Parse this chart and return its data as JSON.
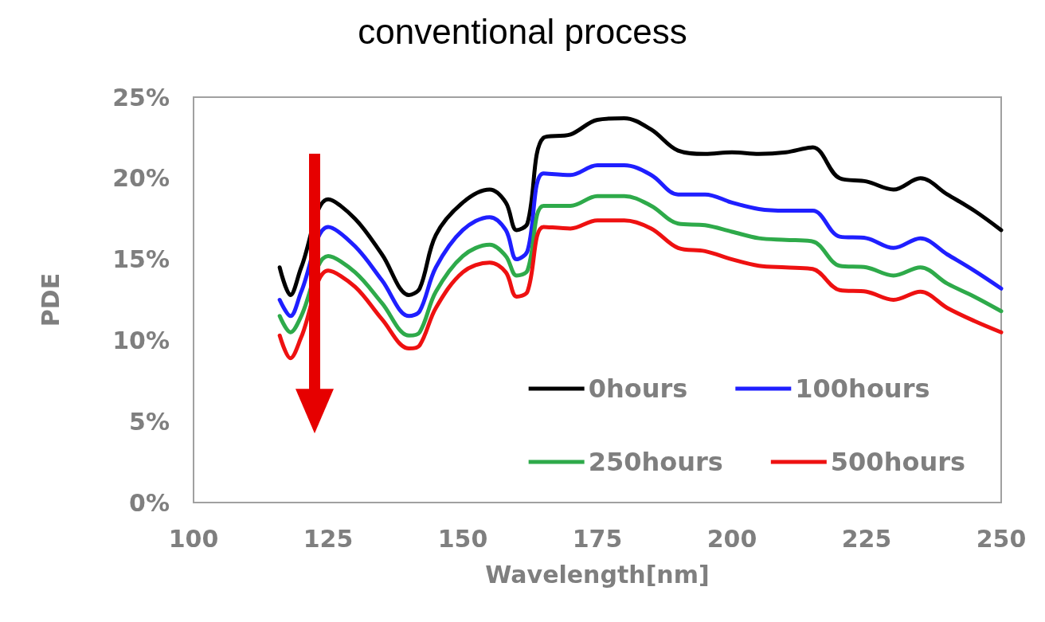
{
  "chart_data": {
    "type": "line",
    "title": "conventional process",
    "xlabel": "Wavelength[nm]",
    "ylabel": "PDE",
    "x": [
      116,
      118,
      120,
      125,
      130,
      135,
      140,
      142,
      145,
      150,
      155,
      158,
      160,
      162,
      165,
      170,
      175,
      180,
      185,
      190,
      195,
      200,
      205,
      210,
      215,
      220,
      225,
      230,
      235,
      240,
      245,
      250
    ],
    "series": [
      {
        "name": "0hours",
        "color": "#000000",
        "values": [
          14.5,
          12.8,
          14.5,
          18.7,
          17.5,
          15.3,
          12.8,
          13.2,
          16.5,
          18.5,
          19.3,
          18.5,
          16.8,
          17.2,
          22.5,
          22.7,
          23.6,
          23.7,
          23.0,
          21.7,
          21.5,
          21.6,
          21.5,
          21.6,
          21.9,
          20.0,
          19.8,
          19.3,
          20.0,
          19.0,
          18.0,
          16.8
        ]
      },
      {
        "name": "100hours",
        "color": "#1f1fff",
        "values": [
          12.5,
          11.5,
          13.0,
          17.0,
          15.8,
          13.7,
          11.5,
          11.8,
          14.5,
          16.8,
          17.6,
          16.8,
          15.0,
          15.5,
          20.3,
          20.2,
          20.8,
          20.8,
          20.2,
          19.0,
          19.0,
          18.5,
          18.1,
          18.0,
          18.0,
          16.4,
          16.3,
          15.7,
          16.3,
          15.3,
          14.3,
          13.2
        ]
      },
      {
        "name": "250hours",
        "color": "#2eaa4a",
        "values": [
          11.5,
          10.5,
          11.5,
          15.2,
          14.2,
          12.3,
          10.3,
          10.5,
          13.0,
          15.2,
          15.9,
          15.2,
          14.0,
          14.3,
          18.3,
          18.3,
          18.9,
          18.9,
          18.3,
          17.2,
          17.1,
          16.7,
          16.3,
          16.2,
          16.1,
          14.6,
          14.5,
          14.0,
          14.5,
          13.5,
          12.7,
          11.8
        ]
      },
      {
        "name": "500hours",
        "color": "#ee1111",
        "values": [
          10.3,
          8.9,
          10.2,
          14.3,
          13.3,
          11.3,
          9.5,
          9.7,
          12.0,
          14.2,
          14.8,
          14.2,
          12.7,
          13.0,
          17.0,
          16.9,
          17.4,
          17.4,
          16.9,
          15.7,
          15.5,
          15.0,
          14.6,
          14.5,
          14.4,
          13.1,
          13.0,
          12.5,
          13.0,
          12.0,
          11.2,
          10.5
        ]
      }
    ],
    "xlim": [
      100,
      250
    ],
    "xticks": [
      100,
      125,
      150,
      175,
      200,
      225,
      250
    ],
    "ylim": [
      0,
      25
    ],
    "yticks": [
      {
        "value": 0,
        "label": "0%"
      },
      {
        "value": 5,
        "label": "5%"
      },
      {
        "value": 10,
        "label": "10%"
      },
      {
        "value": 15,
        "label": "15%"
      },
      {
        "value": 20,
        "label": "20%"
      },
      {
        "value": 25,
        "label": "25%"
      }
    ],
    "grid": false,
    "legend": "bottom right",
    "marker": "none",
    "line_style": "solid"
  }
}
